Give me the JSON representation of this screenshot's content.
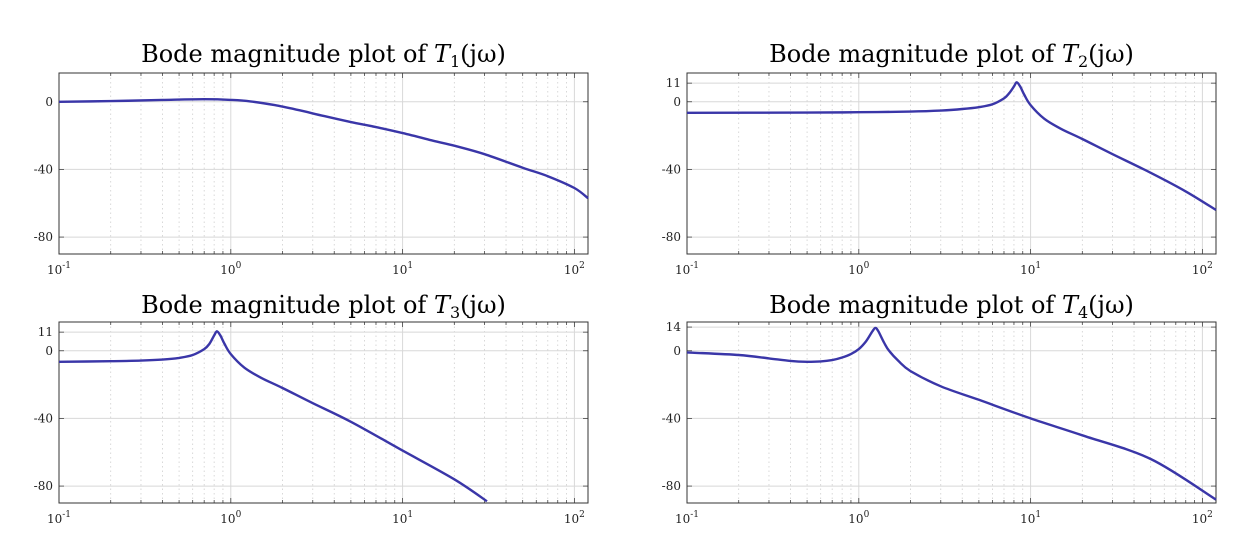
{
  "chart_data": [
    {
      "type": "line",
      "title": {
        "prefix": "Bode magnitude plot of ",
        "var": "T",
        "sub": "1",
        "suffix": "(jω)"
      },
      "x_scale": "log",
      "xlim": [
        0.1,
        120
      ],
      "ylim": [
        -90,
        17
      ],
      "x_ticks": [
        {
          "base": "10",
          "exp": "-1"
        },
        {
          "base": "10",
          "exp": "0"
        },
        {
          "base": "10",
          "exp": "1"
        },
        {
          "base": "10",
          "exp": "2"
        }
      ],
      "y_ticks": [
        "0",
        "-40",
        "-80"
      ],
      "y_tick_values": [
        0,
        -40,
        -80
      ],
      "grid": true,
      "series_color": "#3a36a8",
      "series": [
        {
          "x": [
            0.1,
            0.2,
            0.4,
            0.7,
            1.0,
            1.3,
            1.8,
            2.5,
            3.5,
            5,
            7,
            10,
            15,
            20,
            30,
            50,
            70,
            100,
            120
          ],
          "y": [
            0,
            0.4,
            1.1,
            1.5,
            1.1,
            0.2,
            -2,
            -5,
            -8.5,
            -12,
            -15,
            -18.5,
            -23,
            -26,
            -31,
            -39,
            -44,
            -51,
            -57
          ]
        }
      ]
    },
    {
      "type": "line",
      "title": {
        "prefix": "Bode magnitude plot of ",
        "var": "T",
        "sub": "2",
        "suffix": "(jω)"
      },
      "x_scale": "log",
      "xlim": [
        0.1,
        120
      ],
      "ylim": [
        -90,
        17
      ],
      "x_ticks": [
        {
          "base": "10",
          "exp": "-1"
        },
        {
          "base": "10",
          "exp": "0"
        },
        {
          "base": "10",
          "exp": "1"
        },
        {
          "base": "10",
          "exp": "2"
        }
      ],
      "y_ticks": [
        "11",
        "0",
        "-40",
        "-80"
      ],
      "y_tick_values": [
        11,
        0,
        -40,
        -80
      ],
      "grid": true,
      "series_color": "#3a36a8",
      "series": [
        {
          "x": [
            0.1,
            0.5,
            1,
            2,
            3,
            4,
            5,
            6,
            7,
            7.5,
            8,
            8.3,
            8.7,
            9.2,
            10,
            12,
            15,
            20,
            30,
            50,
            80,
            120
          ],
          "y": [
            -6.5,
            -6.4,
            -6.2,
            -5.8,
            -5.2,
            -4.3,
            -3.2,
            -1.5,
            2,
            5,
            9,
            11.5,
            9,
            4,
            -2,
            -10,
            -16,
            -22,
            -31,
            -42,
            -53,
            -64
          ]
        }
      ]
    },
    {
      "type": "line",
      "title": {
        "prefix": "Bode magnitude plot of ",
        "var": "T",
        "sub": "3",
        "suffix": "(jω)"
      },
      "x_scale": "log",
      "xlim": [
        0.1,
        120
      ],
      "ylim": [
        -90,
        17
      ],
      "x_ticks": [
        {
          "base": "10",
          "exp": "-1"
        },
        {
          "base": "10",
          "exp": "0"
        },
        {
          "base": "10",
          "exp": "1"
        },
        {
          "base": "10",
          "exp": "2"
        }
      ],
      "y_ticks": [
        "11",
        "0",
        "-40",
        "-80"
      ],
      "y_tick_values": [
        11,
        0,
        -40,
        -80
      ],
      "grid": true,
      "series_color": "#3a36a8",
      "series": [
        {
          "x": [
            0.1,
            0.2,
            0.3,
            0.4,
            0.5,
            0.6,
            0.7,
            0.75,
            0.8,
            0.83,
            0.87,
            0.92,
            1.0,
            1.2,
            1.5,
            2,
            3,
            5,
            10,
            20,
            31
          ],
          "y": [
            -6.5,
            -6.2,
            -5.8,
            -5.2,
            -4.2,
            -2.5,
            1,
            4,
            9,
            11.5,
            9,
            4,
            -2,
            -10,
            -16,
            -22,
            -31,
            -42,
            -59,
            -76,
            -89
          ]
        }
      ]
    },
    {
      "type": "line",
      "title": {
        "prefix": "Bode magnitude plot of ",
        "var": "T",
        "sub": "4",
        "suffix": "(jω)"
      },
      "x_scale": "log",
      "xlim": [
        0.1,
        120
      ],
      "ylim": [
        -90,
        17
      ],
      "x_ticks": [
        {
          "base": "10",
          "exp": "-1"
        },
        {
          "base": "10",
          "exp": "0"
        },
        {
          "base": "10",
          "exp": "1"
        },
        {
          "base": "10",
          "exp": "2"
        }
      ],
      "y_ticks": [
        "14",
        "0",
        "-40",
        "-80"
      ],
      "y_tick_values": [
        14,
        0,
        -40,
        -80
      ],
      "grid": true,
      "series_color": "#3a36a8",
      "series": [
        {
          "x": [
            0.1,
            0.2,
            0.3,
            0.4,
            0.5,
            0.6,
            0.7,
            0.8,
            0.9,
            1.0,
            1.1,
            1.2,
            1.25,
            1.3,
            1.4,
            1.5,
            1.7,
            2,
            3,
            5,
            10,
            20,
            50,
            120
          ],
          "y": [
            -1,
            -2.5,
            -4.5,
            -6,
            -6.5,
            -6.3,
            -5.5,
            -4,
            -2,
            1,
            5.5,
            11.5,
            13.5,
            11.5,
            5,
            0,
            -6,
            -12,
            -21,
            -29,
            -40,
            -50,
            -64,
            -88
          ]
        }
      ]
    }
  ]
}
